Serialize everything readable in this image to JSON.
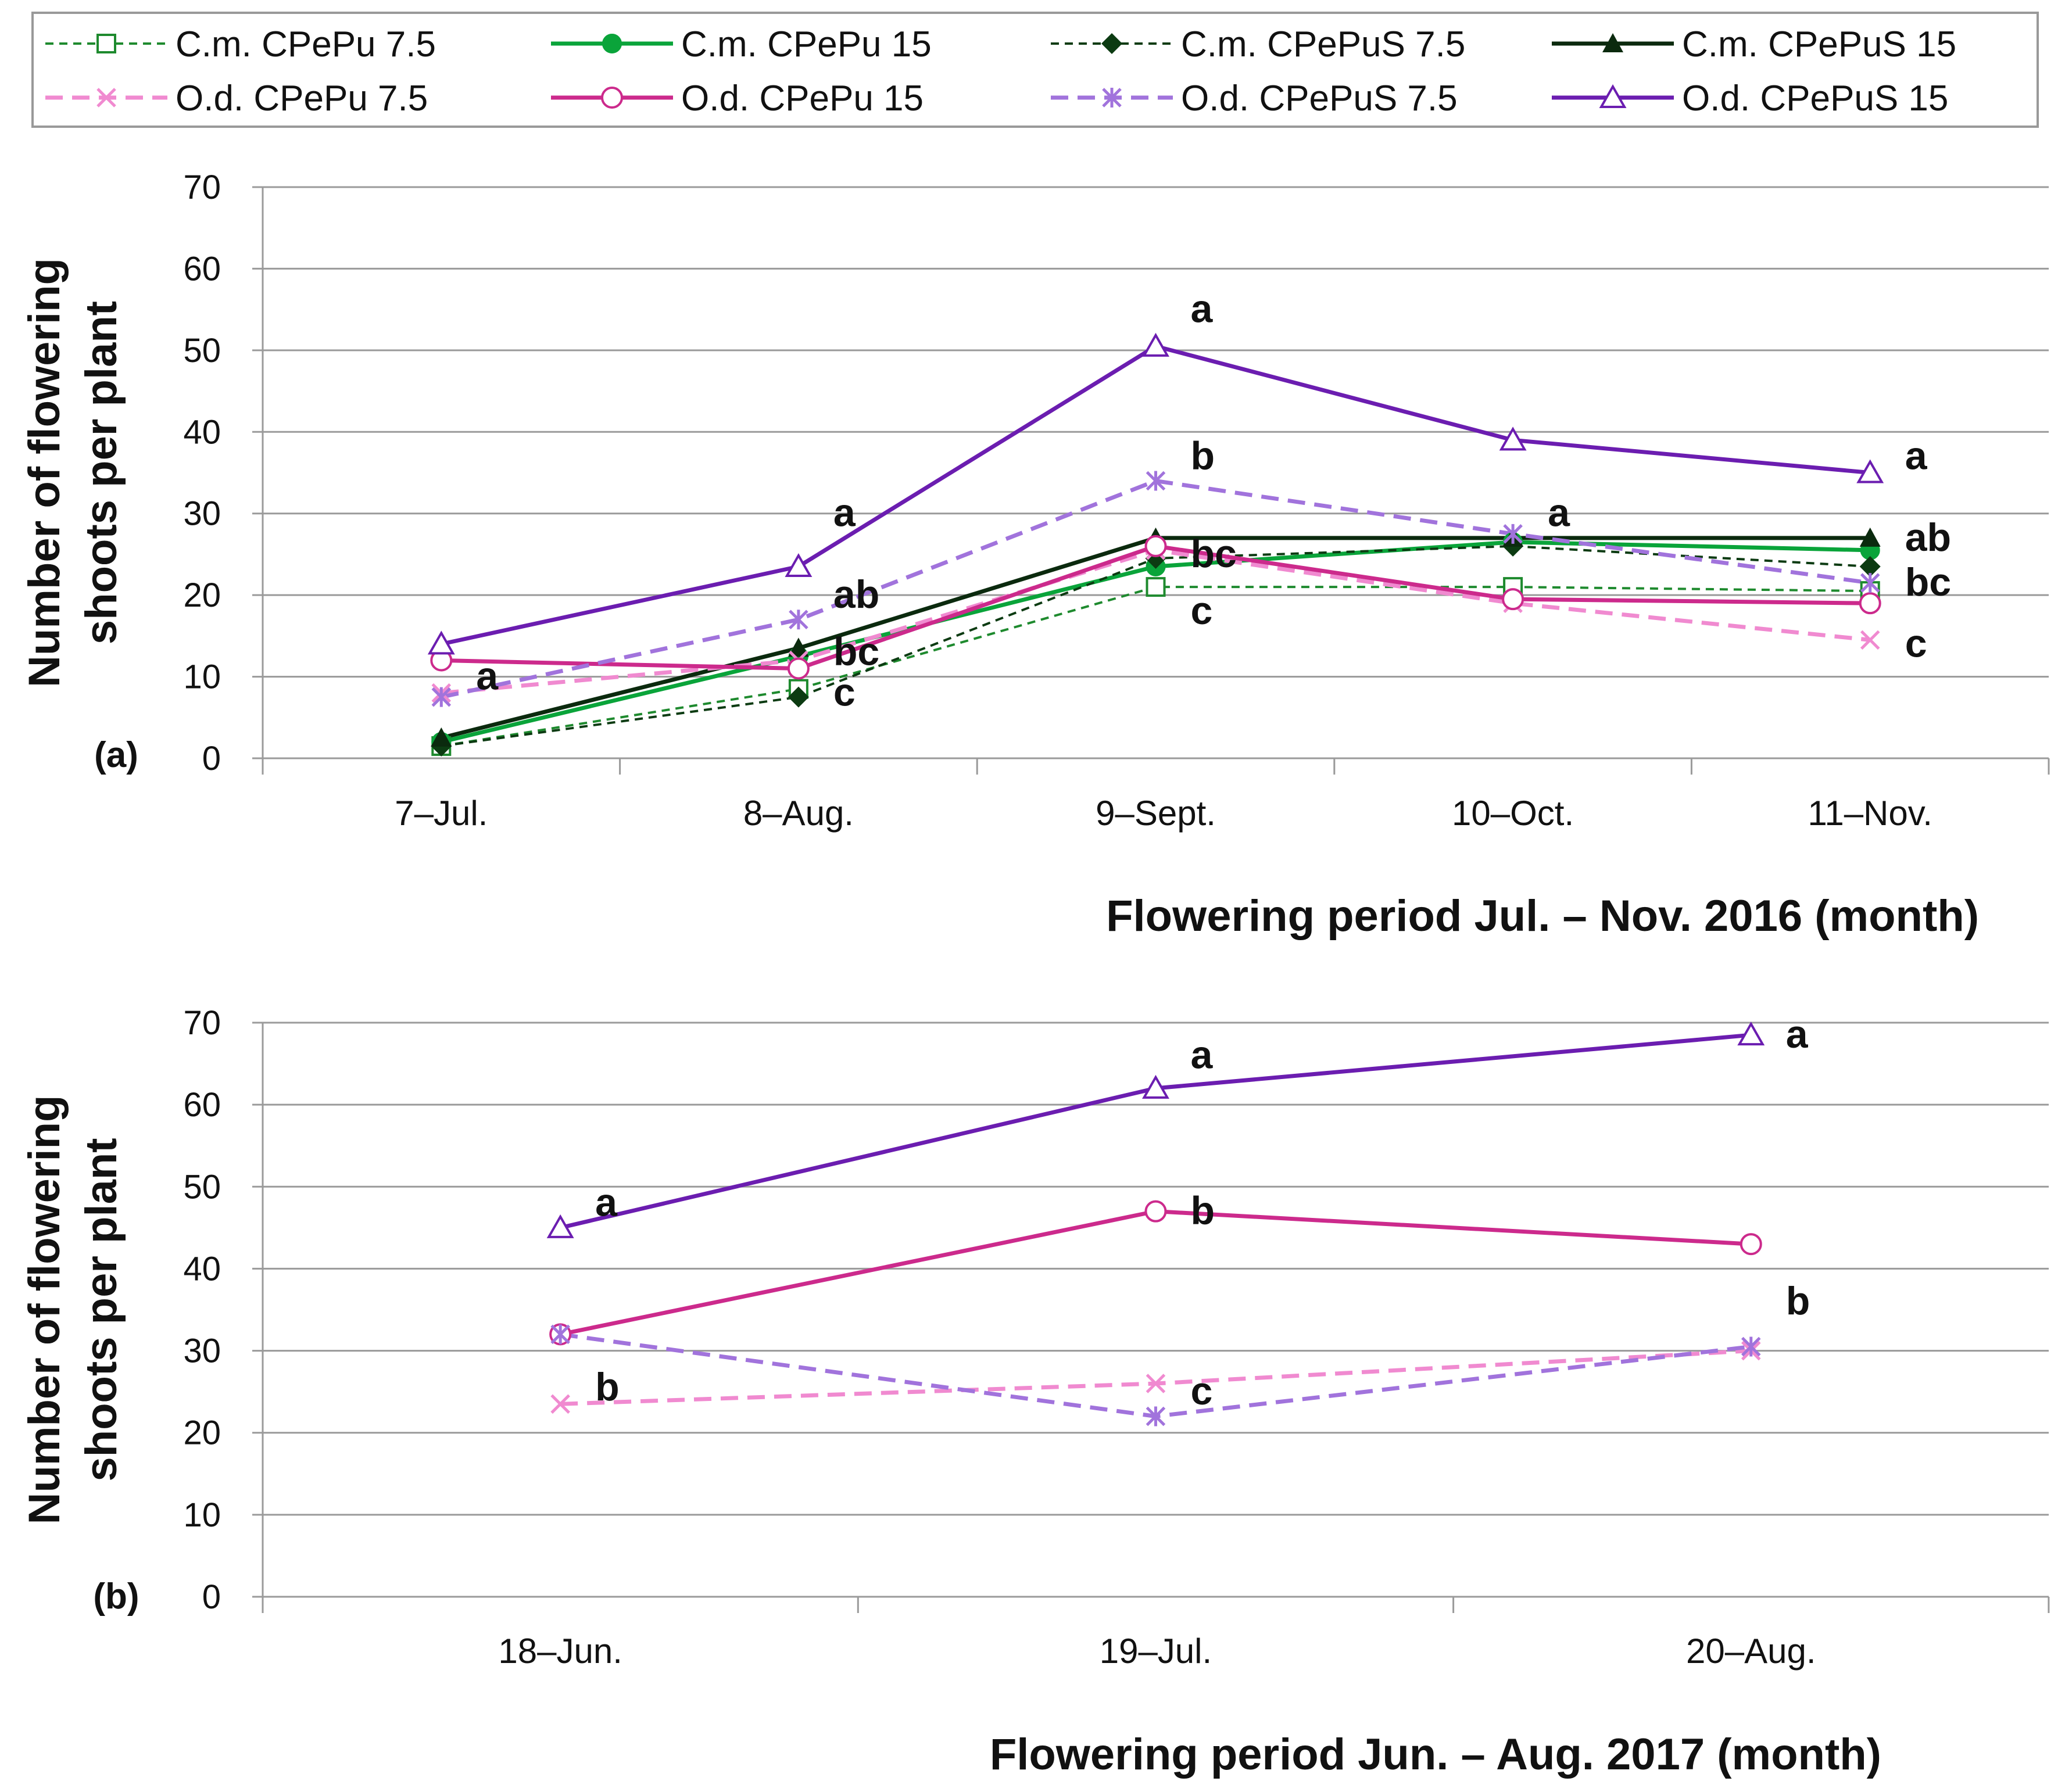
{
  "legend": {
    "entries": [
      {
        "label": "C.m. CPePu 7.5",
        "series": "cm_cpepu_75"
      },
      {
        "label": "C.m. CPePu 15",
        "series": "cm_cpepu_15"
      },
      {
        "label": "C.m. CPePuS 7.5",
        "series": "cm_cpepus_75"
      },
      {
        "label": "C.m. CPePuS 15",
        "series": "cm_cpepus_15"
      },
      {
        "label": "O.d. CPePu 7.5",
        "series": "od_cpepu_75"
      },
      {
        "label": "O.d. CPePu 15",
        "series": "od_cpepu_15"
      },
      {
        "label": "O.d. CPePuS 7.5",
        "series": "od_cpepus_75"
      },
      {
        "label": "O.d. CPePuS 15",
        "series": "od_cpepus_15"
      }
    ]
  },
  "series_styles": {
    "cm_cpepu_75": {
      "color": "#1e8a2e",
      "dash": "dashed",
      "marker": "square-open",
      "width": "thin"
    },
    "cm_cpepu_15": {
      "color": "#0aa43a",
      "dash": "solid",
      "marker": "circle-filled",
      "width": "thick"
    },
    "cm_cpepus_75": {
      "color": "#0c3b12",
      "dash": "dashed",
      "marker": "diamond-filled",
      "width": "thin"
    },
    "cm_cpepus_15": {
      "color": "#0b2a0e",
      "dash": "solid",
      "marker": "triangle-filled",
      "width": "thick"
    },
    "od_cpepu_75": {
      "color": "#f08ad0",
      "dash": "dashed",
      "marker": "x",
      "width": "thick"
    },
    "od_cpepu_15": {
      "color": "#cc2a8c",
      "dash": "solid",
      "marker": "circle-open",
      "width": "thick"
    },
    "od_cpepus_75": {
      "color": "#a173dc",
      "dash": "dashed",
      "marker": "asterisk",
      "width": "thick"
    },
    "od_cpepus_15": {
      "color": "#6b1db0",
      "dash": "solid",
      "marker": "triangle-open",
      "width": "thick"
    }
  },
  "chart_data": [
    {
      "type": "line",
      "panel": "(a)",
      "ylabel": "Number of flowering shoots per plant",
      "ylabel_lines": [
        "Number of flowering",
        "shoots per plant"
      ],
      "xlabel": "Flowering period  Jul. – Nov. 2016 (month)",
      "ylim": [
        0,
        70
      ],
      "yticks": [
        0,
        10,
        20,
        30,
        40,
        50,
        60,
        70
      ],
      "grid": "horizontal",
      "categories": [
        "7–Jul.",
        "8–Aug.",
        "9–Sept.",
        "10–Oct.",
        "11–Nov."
      ],
      "series": [
        {
          "key": "cm_cpepu_75",
          "name": "C.m. CPePu 7.5",
          "values": [
            1.5,
            8.5,
            21,
            21,
            20.5
          ]
        },
        {
          "key": "cm_cpepu_15",
          "name": "C.m. CPePu 15",
          "values": [
            2,
            12.5,
            23.5,
            26.5,
            25.5
          ]
        },
        {
          "key": "cm_cpepus_75",
          "name": "C.m. CPePuS 7.5",
          "values": [
            1.5,
            7.5,
            24.5,
            26,
            23.5
          ]
        },
        {
          "key": "cm_cpepus_15",
          "name": "C.m. CPePuS 15",
          "values": [
            2.5,
            13.5,
            27,
            27,
            27
          ]
        },
        {
          "key": "od_cpepu_75",
          "name": "O.d. CPePu 7.5",
          "values": [
            8,
            12,
            25.5,
            19,
            14.5
          ]
        },
        {
          "key": "od_cpepu_15",
          "name": "O.d. CPePu 15",
          "values": [
            12,
            11,
            26,
            19.5,
            19
          ]
        },
        {
          "key": "od_cpepus_75",
          "name": "O.d. CPePuS 7.5",
          "values": [
            7.5,
            17,
            34,
            27.5,
            21.5
          ]
        },
        {
          "key": "od_cpepus_15",
          "name": "O.d. CPePuS 15",
          "values": [
            14,
            23.5,
            50.5,
            39,
            35
          ]
        }
      ],
      "annotations": [
        {
          "text": "a",
          "category": 0,
          "value": 10
        },
        {
          "text": "a",
          "category": 1,
          "value": 30
        },
        {
          "text": "ab",
          "category": 1,
          "value": 20
        },
        {
          "text": "bc",
          "category": 1,
          "value": 13
        },
        {
          "text": "c",
          "category": 1,
          "value": 8
        },
        {
          "text": "a",
          "category": 2,
          "value": 55
        },
        {
          "text": "b",
          "category": 2,
          "value": 37
        },
        {
          "text": "bc",
          "category": 2,
          "value": 25
        },
        {
          "text": "c",
          "category": 2,
          "value": 18
        },
        {
          "text": "a",
          "category": 3,
          "value": 30
        },
        {
          "text": "a",
          "category": 4,
          "value": 37
        },
        {
          "text": "ab",
          "category": 4,
          "value": 27
        },
        {
          "text": "bc",
          "category": 4,
          "value": 21.5
        },
        {
          "text": "c",
          "category": 4,
          "value": 14
        }
      ]
    },
    {
      "type": "line",
      "panel": "(b)",
      "ylabel": "Number of flowering shoots per plant",
      "ylabel_lines": [
        "Number of flowering",
        "shoots per plant"
      ],
      "xlabel": "Flowering period  Jun. – Aug. 2017 (month)",
      "ylim": [
        0,
        70
      ],
      "yticks": [
        0,
        10,
        20,
        30,
        40,
        50,
        60,
        70
      ],
      "grid": "horizontal",
      "categories": [
        "18–Jun.",
        "19–Jul.",
        "20–Aug."
      ],
      "series": [
        {
          "key": "od_cpepu_75",
          "name": "O.d. CPePu 7.5",
          "values": [
            23.5,
            26,
            30
          ]
        },
        {
          "key": "od_cpepu_15",
          "name": "O.d. CPePu 15",
          "values": [
            32,
            47,
            43
          ]
        },
        {
          "key": "od_cpepus_75",
          "name": "O.d. CPePuS 7.5",
          "values": [
            32,
            22,
            30.5
          ]
        },
        {
          "key": "od_cpepus_15",
          "name": "O.d. CPePuS 15",
          "values": [
            45,
            62,
            68.5
          ]
        }
      ],
      "annotations": [
        {
          "text": "a",
          "category": 0,
          "value": 48
        },
        {
          "text": "b",
          "category": 0,
          "value": 25.5
        },
        {
          "text": "a",
          "category": 1,
          "value": 66
        },
        {
          "text": "b",
          "category": 1,
          "value": 47
        },
        {
          "text": "c",
          "category": 1,
          "value": 25
        },
        {
          "text": "a",
          "category": 2,
          "value": 68.5
        },
        {
          "text": "b",
          "category": 2,
          "value": 36
        }
      ]
    }
  ]
}
